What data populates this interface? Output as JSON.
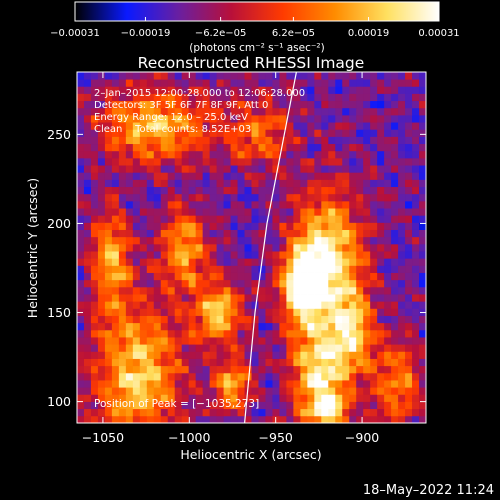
{
  "chart_data": {
    "type": "heatmap",
    "title": "Reconstructed RHESSI Image",
    "xlabel": "Heliocentric X (arcsec)",
    "ylabel": "Heliocentric Y (arcsec)",
    "xlim": [
      -1065,
      -863
    ],
    "ylim": [
      88,
      285
    ],
    "x_ticks": [
      -1050,
      -1000,
      -950,
      -900
    ],
    "x_tick_labels": [
      "−1050",
      "−1000",
      "−950",
      "−900"
    ],
    "y_ticks": [
      100,
      150,
      200,
      250
    ],
    "y_tick_labels": [
      "100",
      "150",
      "200",
      "250"
    ],
    "colorbar": {
      "range": [
        -0.00031,
        0.00031
      ],
      "ticks": [
        -0.00031,
        -0.00019,
        -6.2e-05,
        6.2e-05,
        0.00019,
        0.00031
      ],
      "tick_labels": [
        "−0.00031",
        "−0.00019",
        "−6.2e−05",
        "6.2e−05",
        "0.00019",
        "0.00031"
      ],
      "unit": "(photons cm⁻² s⁻¹ asec⁻²)",
      "stops": [
        "#000000",
        "#0a1aff",
        "#6a1fa0",
        "#b8103a",
        "#ff3b00",
        "#ff8c00",
        "#ffe060",
        "#ffffff"
      ]
    },
    "annotations": [
      "2–Jan–2015 12:00:28.000 to 12:06:28.000",
      "Detectors: 3F 5F 6F 7F 8F 9F, Att 0",
      "Energy Range: 12.0 – 25.0 keV",
      "Clean    Total counts: 8.52E+03"
    ],
    "peak_label": "Position of Peak = [−1035,273]",
    "limb_curve": {
      "color": "#ffffff",
      "points": [
        [
          -968,
          88
        ],
        [
          -962,
          150
        ],
        [
          -955,
          200
        ],
        [
          -945,
          250
        ],
        [
          -938,
          285
        ]
      ]
    },
    "grid": false,
    "legend": "none",
    "nx": 50,
    "ny": 49,
    "hotspots": [
      {
        "x": -1030,
        "y": 115,
        "sx": 18,
        "sy": 26,
        "a": 0.85
      },
      {
        "x": -1045,
        "y": 180,
        "sx": 8,
        "sy": 20,
        "a": 0.7
      },
      {
        "x": -1020,
        "y": 255,
        "sx": 22,
        "sy": 14,
        "a": 0.8
      },
      {
        "x": -1003,
        "y": 185,
        "sx": 10,
        "sy": 16,
        "a": 0.7
      },
      {
        "x": -983,
        "y": 150,
        "sx": 10,
        "sy": 12,
        "a": 0.8
      },
      {
        "x": -975,
        "y": 110,
        "sx": 8,
        "sy": 10,
        "a": 0.7
      },
      {
        "x": -935,
        "y": 165,
        "sx": 9,
        "sy": 14,
        "a": 0.95
      },
      {
        "x": -920,
        "y": 180,
        "sx": 14,
        "sy": 26,
        "a": 1.0
      },
      {
        "x": -925,
        "y": 118,
        "sx": 12,
        "sy": 18,
        "a": 0.9
      },
      {
        "x": -905,
        "y": 140,
        "sx": 8,
        "sy": 16,
        "a": 0.7
      },
      {
        "x": -920,
        "y": 95,
        "sx": 8,
        "sy": 8,
        "a": 0.8
      },
      {
        "x": -960,
        "y": 250,
        "sx": 14,
        "sy": 14,
        "a": 0.5
      },
      {
        "x": -880,
        "y": 110,
        "sx": 10,
        "sy": 18,
        "a": 0.6
      }
    ]
  },
  "footer": {
    "date_text": "18–May–2022 11:24"
  }
}
